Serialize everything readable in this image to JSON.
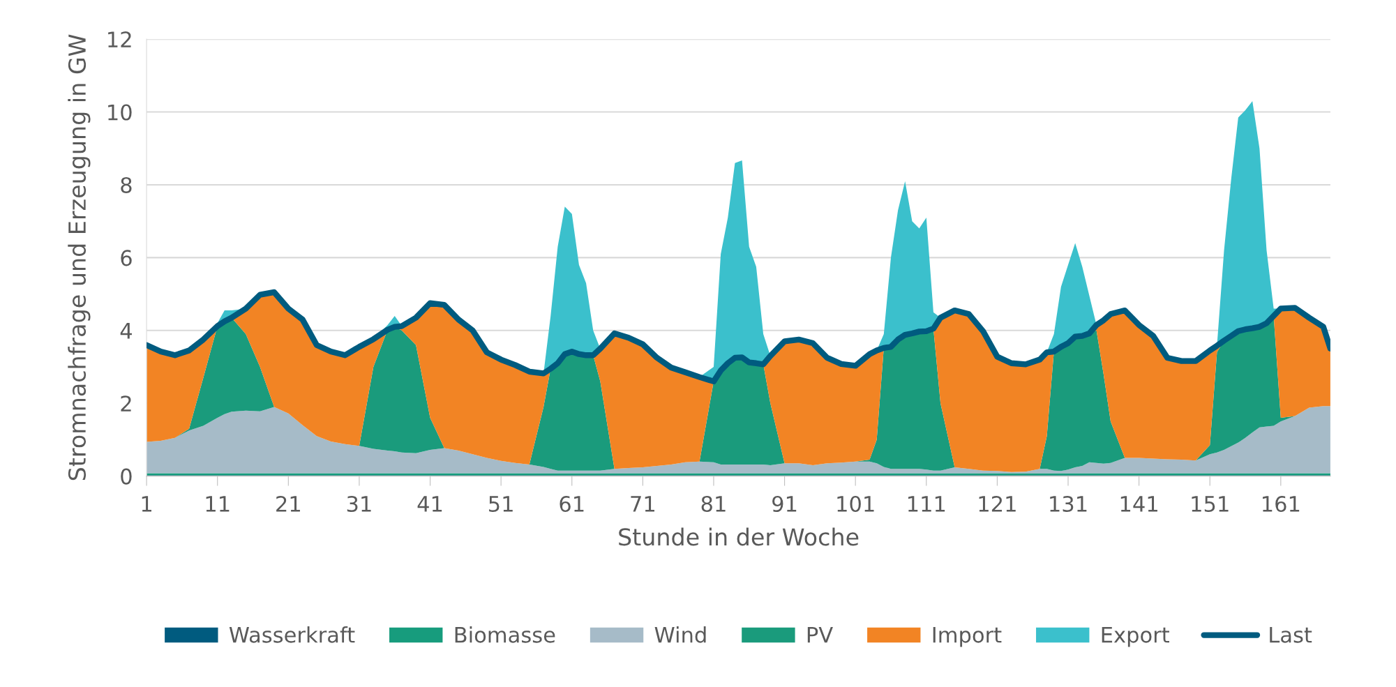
{
  "chart_data": {
    "type": "area",
    "stacked": true,
    "xlabel": "Stunde in der Woche",
    "ylabel": "Stromnachfrage und Erzeugung in GW",
    "x": [
      1,
      3,
      5,
      7,
      9,
      11,
      12,
      13,
      15,
      17,
      19,
      21,
      23,
      25,
      27,
      29,
      31,
      33,
      35,
      36,
      37,
      39,
      41,
      43,
      45,
      47,
      49,
      51,
      53,
      55,
      57,
      58,
      59,
      60,
      61,
      62,
      63,
      64,
      65,
      67,
      69,
      71,
      73,
      75,
      77,
      79,
      81,
      82,
      83,
      84,
      85,
      86,
      87,
      88,
      89,
      91,
      93,
      95,
      97,
      99,
      101,
      103,
      104,
      105,
      106,
      107,
      108,
      109,
      110,
      111,
      112,
      113,
      115,
      117,
      119,
      121,
      123,
      125,
      127,
      128,
      129,
      130,
      131,
      132,
      133,
      134,
      135,
      136,
      137,
      139,
      141,
      143,
      145,
      147,
      149,
      151,
      152,
      153,
      154,
      155,
      156,
      157,
      158,
      159,
      160,
      161,
      163,
      165,
      167,
      168
    ],
    "xlim": [
      1,
      168
    ],
    "xticks": [
      1,
      11,
      21,
      31,
      41,
      51,
      61,
      71,
      81,
      91,
      101,
      111,
      121,
      131,
      141,
      151,
      161
    ],
    "ylim": [
      0,
      12
    ],
    "yticks": [
      0,
      2,
      4,
      6,
      8,
      10,
      12
    ],
    "grid": "y",
    "legend": "bottom",
    "series": [
      {
        "name": "Wasserkraft",
        "color": "#005b7f",
        "values": [
          0.02,
          0.02,
          0.02,
          0.02,
          0.02,
          0.02,
          0.02,
          0.02,
          0.02,
          0.02,
          0.02,
          0.02,
          0.02,
          0.02,
          0.02,
          0.02,
          0.02,
          0.02,
          0.02,
          0.02,
          0.02,
          0.02,
          0.02,
          0.02,
          0.02,
          0.02,
          0.02,
          0.02,
          0.02,
          0.02,
          0.02,
          0.02,
          0.02,
          0.02,
          0.02,
          0.02,
          0.02,
          0.02,
          0.02,
          0.02,
          0.02,
          0.02,
          0.02,
          0.02,
          0.02,
          0.02,
          0.02,
          0.02,
          0.02,
          0.02,
          0.02,
          0.02,
          0.02,
          0.02,
          0.02,
          0.02,
          0.02,
          0.02,
          0.02,
          0.02,
          0.02,
          0.02,
          0.02,
          0.02,
          0.02,
          0.02,
          0.02,
          0.02,
          0.02,
          0.02,
          0.02,
          0.02,
          0.02,
          0.02,
          0.02,
          0.02,
          0.02,
          0.02,
          0.02,
          0.02,
          0.02,
          0.02,
          0.02,
          0.02,
          0.02,
          0.02,
          0.02,
          0.02,
          0.02,
          0.02,
          0.02,
          0.02,
          0.02,
          0.02,
          0.02,
          0.02,
          0.02,
          0.02,
          0.02,
          0.02,
          0.02,
          0.02,
          0.02,
          0.02,
          0.02,
          0.02,
          0.02,
          0.02,
          0.02,
          0.02
        ]
      },
      {
        "name": "Biomasse",
        "color": "#179c7d",
        "values": [
          0.06,
          0.06,
          0.06,
          0.06,
          0.06,
          0.06,
          0.06,
          0.06,
          0.06,
          0.06,
          0.06,
          0.06,
          0.06,
          0.06,
          0.06,
          0.06,
          0.06,
          0.06,
          0.06,
          0.06,
          0.06,
          0.06,
          0.06,
          0.06,
          0.06,
          0.06,
          0.06,
          0.06,
          0.06,
          0.06,
          0.06,
          0.06,
          0.06,
          0.06,
          0.06,
          0.06,
          0.06,
          0.06,
          0.06,
          0.06,
          0.06,
          0.06,
          0.06,
          0.06,
          0.06,
          0.06,
          0.06,
          0.06,
          0.06,
          0.06,
          0.06,
          0.06,
          0.06,
          0.06,
          0.06,
          0.06,
          0.06,
          0.06,
          0.06,
          0.06,
          0.06,
          0.06,
          0.06,
          0.06,
          0.06,
          0.06,
          0.06,
          0.06,
          0.06,
          0.06,
          0.06,
          0.06,
          0.06,
          0.06,
          0.06,
          0.06,
          0.06,
          0.06,
          0.06,
          0.06,
          0.06,
          0.06,
          0.06,
          0.06,
          0.06,
          0.06,
          0.06,
          0.06,
          0.06,
          0.06,
          0.06,
          0.06,
          0.06,
          0.06,
          0.06,
          0.06,
          0.06,
          0.06,
          0.06,
          0.06,
          0.06,
          0.06,
          0.06,
          0.06,
          0.06,
          0.06,
          0.06,
          0.06,
          0.06,
          0.06
        ]
      },
      {
        "name": "Wind",
        "color": "#a6bbc8",
        "values": [
          0.86,
          0.89,
          0.97,
          1.17,
          1.3,
          1.52,
          1.62,
          1.69,
          1.72,
          1.7,
          1.82,
          1.64,
          1.32,
          1.02,
          0.87,
          0.8,
          0.75,
          0.67,
          0.62,
          0.6,
          0.57,
          0.55,
          0.64,
          0.69,
          0.62,
          0.52,
          0.42,
          0.34,
          0.28,
          0.24,
          0.17,
          0.12,
          0.07,
          0.07,
          0.07,
          0.07,
          0.07,
          0.07,
          0.07,
          0.12,
          0.14,
          0.16,
          0.2,
          0.24,
          0.3,
          0.32,
          0.3,
          0.24,
          0.24,
          0.24,
          0.24,
          0.24,
          0.24,
          0.24,
          0.22,
          0.27,
          0.27,
          0.22,
          0.27,
          0.29,
          0.32,
          0.32,
          0.27,
          0.17,
          0.12,
          0.12,
          0.12,
          0.12,
          0.12,
          0.1,
          0.07,
          0.07,
          0.16,
          0.12,
          0.07,
          0.06,
          0.03,
          0.04,
          0.12,
          0.12,
          0.07,
          0.06,
          0.1,
          0.16,
          0.2,
          0.3,
          0.28,
          0.26,
          0.28,
          0.42,
          0.42,
          0.4,
          0.38,
          0.37,
          0.35,
          0.52,
          0.57,
          0.64,
          0.74,
          0.84,
          0.97,
          1.12,
          1.26,
          1.28,
          1.3,
          1.42,
          1.57,
          1.8,
          1.84,
          1.84
        ]
      },
      {
        "name": "PV",
        "color": "#1a9b7c",
        "values": [
          0,
          0,
          0,
          0.05,
          1.32,
          2.52,
          2.55,
          2.58,
          2.1,
          1.22,
          0,
          0,
          0,
          0,
          0,
          0,
          0,
          2.25,
          3.32,
          3.42,
          3.35,
          2.97,
          0.88,
          0,
          0,
          0,
          0,
          0,
          0,
          0,
          1.65,
          2.75,
          2.95,
          3.2,
          3.27,
          3.2,
          3.17,
          3.17,
          2.45,
          0,
          0,
          0,
          0,
          0,
          0,
          0,
          2.22,
          2.58,
          2.78,
          2.93,
          2.94,
          2.8,
          2.78,
          2.75,
          1.7,
          0,
          0,
          0,
          0,
          0,
          0,
          0.05,
          0.65,
          3.27,
          3.35,
          3.55,
          3.68,
          3.72,
          3.77,
          3.8,
          3.9,
          1.85,
          0,
          0,
          0,
          0,
          0,
          0,
          0,
          0.9,
          3.27,
          3.41,
          3.47,
          3.59,
          3.57,
          3.54,
          3.64,
          2.46,
          1.14,
          0,
          0,
          0,
          0,
          0,
          0,
          0.25,
          2.75,
          3.0,
          3.03,
          3.06,
          2.98,
          2.86,
          2.76,
          2.84,
          3.02,
          0.1,
          0,
          0,
          0,
          0
        ]
      },
      {
        "name": "Import",
        "color": "#f28424",
        "values": [
          2.66,
          2.45,
          2.27,
          2.15,
          1.05,
          0,
          0,
          0,
          0.7,
          1.98,
          3.15,
          2.88,
          2.9,
          2.5,
          2.47,
          2.44,
          2.72,
          0.76,
          0,
          0,
          0.12,
          0.75,
          3.15,
          3.93,
          3.6,
          3.4,
          2.9,
          2.78,
          2.69,
          2.55,
          0.92,
          0,
          0,
          0,
          0,
          0,
          0,
          0,
          0.9,
          3.72,
          3.58,
          3.38,
          2.97,
          2.66,
          2.47,
          2.32,
          0,
          0,
          0,
          0,
          0,
          0,
          0,
          0,
          1.3,
          3.35,
          3.4,
          3.35,
          2.9,
          2.71,
          2.63,
          2.9,
          2.45,
          0,
          0,
          0,
          0,
          0,
          0,
          0,
          0,
          2.35,
          4.31,
          4.25,
          3.83,
          3.14,
          2.99,
          2.95,
          3.0,
          2.3,
          0,
          0,
          0,
          0,
          0,
          0,
          0.15,
          1.48,
          2.95,
          4.05,
          3.65,
          3.37,
          2.79,
          2.71,
          2.73,
          2.6,
          0.18,
          0,
          0,
          0,
          0,
          0,
          0,
          0,
          0,
          3.0,
          2.97,
          2.47,
          2.18,
          1.58
        ]
      },
      {
        "name": "Export",
        "color": "#3bc0cc",
        "values": [
          0,
          0,
          0,
          0,
          0,
          0.08,
          0.3,
          0.2,
          0,
          0,
          0,
          0,
          0,
          0,
          0,
          0,
          0,
          0,
          0.13,
          0.3,
          0,
          0,
          0,
          0,
          0,
          0,
          0,
          0,
          0,
          0,
          0,
          1.45,
          3.2,
          4.05,
          3.78,
          2.45,
          1.98,
          0.68,
          0,
          0,
          0,
          0,
          0,
          0,
          0,
          0,
          0.4,
          3.2,
          4.0,
          5.35,
          5.41,
          3.18,
          2.65,
          0.83,
          0,
          0,
          0,
          0,
          0,
          0,
          0,
          0,
          0,
          0.38,
          2.45,
          3.55,
          4.22,
          3.08,
          2.83,
          3.12,
          0.45,
          0,
          0,
          0,
          0,
          0,
          0,
          0,
          0,
          0,
          0.48,
          1.65,
          2.15,
          2.57,
          1.9,
          1.03,
          0,
          0,
          0,
          0,
          0,
          0,
          0,
          0,
          0,
          0,
          0,
          2.48,
          4.3,
          5.87,
          6.02,
          6.24,
          4.9,
          2.0,
          0.2,
          0,
          0,
          0,
          0,
          0
        ]
      },
      {
        "name": "Last",
        "type": "line",
        "color": "#005b7f",
        "values": [
          3.6,
          3.42,
          3.32,
          3.45,
          3.75,
          4.12,
          4.25,
          4.35,
          4.6,
          4.98,
          5.05,
          4.6,
          4.3,
          3.6,
          3.42,
          3.32,
          3.55,
          3.76,
          4.02,
          4.1,
          4.12,
          4.35,
          4.75,
          4.7,
          4.3,
          4.0,
          3.4,
          3.2,
          3.05,
          2.87,
          2.82,
          2.95,
          3.1,
          3.35,
          3.42,
          3.35,
          3.32,
          3.32,
          3.5,
          3.92,
          3.8,
          3.62,
          3.25,
          2.98,
          2.85,
          2.72,
          2.6,
          2.9,
          3.1,
          3.25,
          3.26,
          3.12,
          3.1,
          3.07,
          3.3,
          3.7,
          3.75,
          3.65,
          3.25,
          3.08,
          3.03,
          3.35,
          3.45,
          3.52,
          3.55,
          3.75,
          3.88,
          3.92,
          3.97,
          3.98,
          4.05,
          4.35,
          4.55,
          4.45,
          3.98,
          3.28,
          3.1,
          3.07,
          3.2,
          3.4,
          3.42,
          3.55,
          3.65,
          3.83,
          3.85,
          3.92,
          4.15,
          4.28,
          4.45,
          4.55,
          4.15,
          3.85,
          3.25,
          3.16,
          3.16,
          3.45,
          3.58,
          3.72,
          3.85,
          3.98,
          4.03,
          4.06,
          4.1,
          4.2,
          4.4,
          4.6,
          4.62,
          4.35,
          4.1,
          3.5
        ]
      }
    ]
  }
}
